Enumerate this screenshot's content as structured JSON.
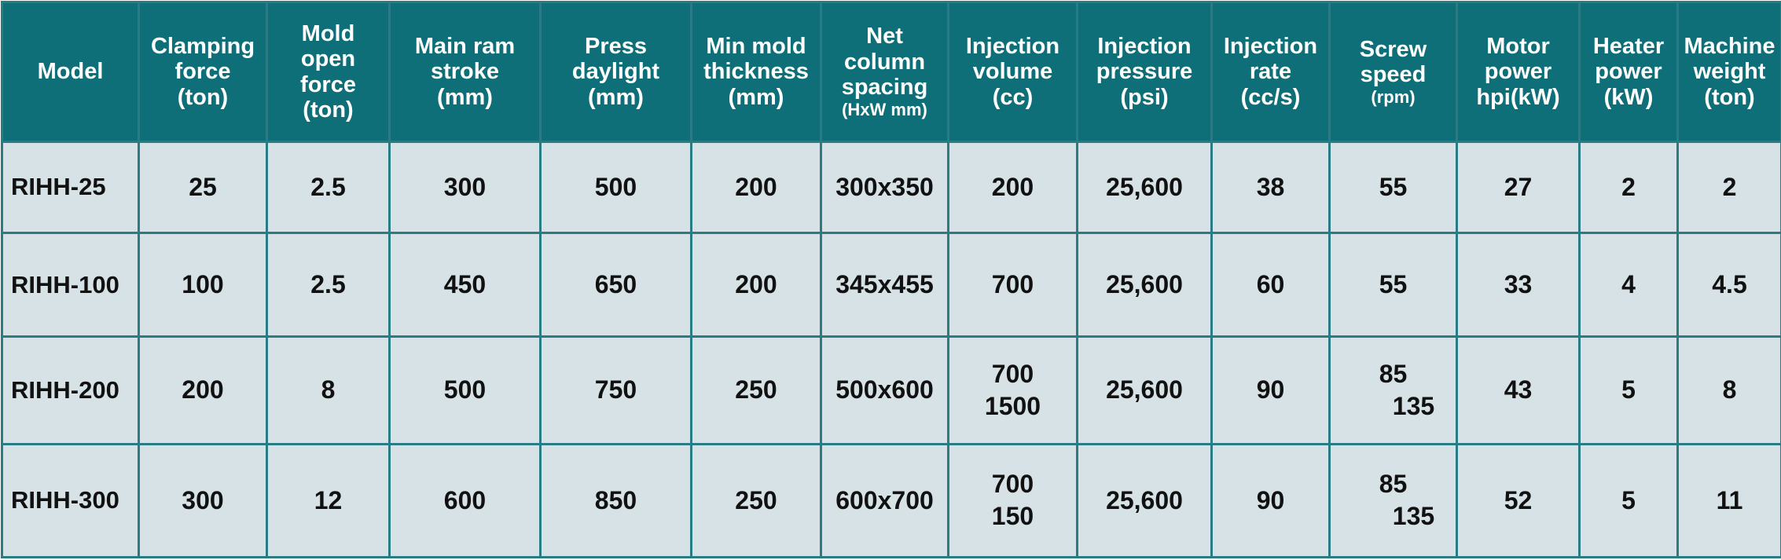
{
  "table": {
    "headers": [
      [
        "Model"
      ],
      [
        "Clamping",
        "force",
        "(ton)"
      ],
      [
        "Mold",
        "open",
        "force",
        "(ton)"
      ],
      [
        "Main ram",
        "stroke",
        "(mm)"
      ],
      [
        "Press",
        "daylight",
        "(mm)"
      ],
      [
        "Min mold",
        "thickness",
        "(mm)"
      ],
      [
        "Net",
        "column",
        "spacing",
        "(HxW mm)"
      ],
      [
        "Injection",
        "volume",
        "(cc)"
      ],
      [
        "Injection",
        "pressure",
        "(psi)"
      ],
      [
        "Injection",
        "rate",
        "(cc/s)"
      ],
      [
        "Screw",
        "speed",
        "(rpm)"
      ],
      [
        "Motor",
        "power",
        "hpi(kW)"
      ],
      [
        "Heater",
        "power",
        "(kW)"
      ],
      [
        "Machine",
        "weight",
        "(ton)"
      ]
    ],
    "rows": [
      {
        "model": "RIHH-25",
        "clamping_force": "25",
        "mold_open_force": "2.5",
        "main_ram_stroke": "300",
        "press_daylight": "500",
        "min_mold_thickness": "200",
        "net_column_spacing": "300x350",
        "injection_volume": [
          "200"
        ],
        "injection_pressure": "25,600",
        "injection_rate": "38",
        "screw_speed": [
          "55"
        ],
        "motor_power": "27",
        "heater_power": "2",
        "machine_weight": "2"
      },
      {
        "model": "RIHH-100",
        "clamping_force": "100",
        "mold_open_force": "2.5",
        "main_ram_stroke": "450",
        "press_daylight": "650",
        "min_mold_thickness": "200",
        "net_column_spacing": "345x455",
        "injection_volume": [
          "700"
        ],
        "injection_pressure": "25,600",
        "injection_rate": "60",
        "screw_speed": [
          "55"
        ],
        "motor_power": "33",
        "heater_power": "4",
        "machine_weight": "4.5"
      },
      {
        "model": "RIHH-200",
        "clamping_force": "200",
        "mold_open_force": "8",
        "main_ram_stroke": "500",
        "press_daylight": "750",
        "min_mold_thickness": "250",
        "net_column_spacing": "500x600",
        "injection_volume": [
          "700",
          "1500"
        ],
        "injection_pressure": "25,600",
        "injection_rate": "90",
        "screw_speed": [
          "85",
          "135"
        ],
        "motor_power": "43",
        "heater_power": "5",
        "machine_weight": "8"
      },
      {
        "model": "RIHH-300",
        "clamping_force": "300",
        "mold_open_force": "12",
        "main_ram_stroke": "600",
        "press_daylight": "850",
        "min_mold_thickness": "250",
        "net_column_spacing": "600x700",
        "injection_volume": [
          "700",
          "150"
        ],
        "injection_pressure": "25,600",
        "injection_rate": "90",
        "screw_speed": [
          "85",
          "135"
        ],
        "motor_power": "52",
        "heater_power": "5",
        "machine_weight": "11"
      }
    ]
  },
  "colors": {
    "header_bg": "#0e6f78",
    "header_text": "#ffffff",
    "cell_bg": "#d6e2e6",
    "grid_line": "#2a7c84"
  }
}
